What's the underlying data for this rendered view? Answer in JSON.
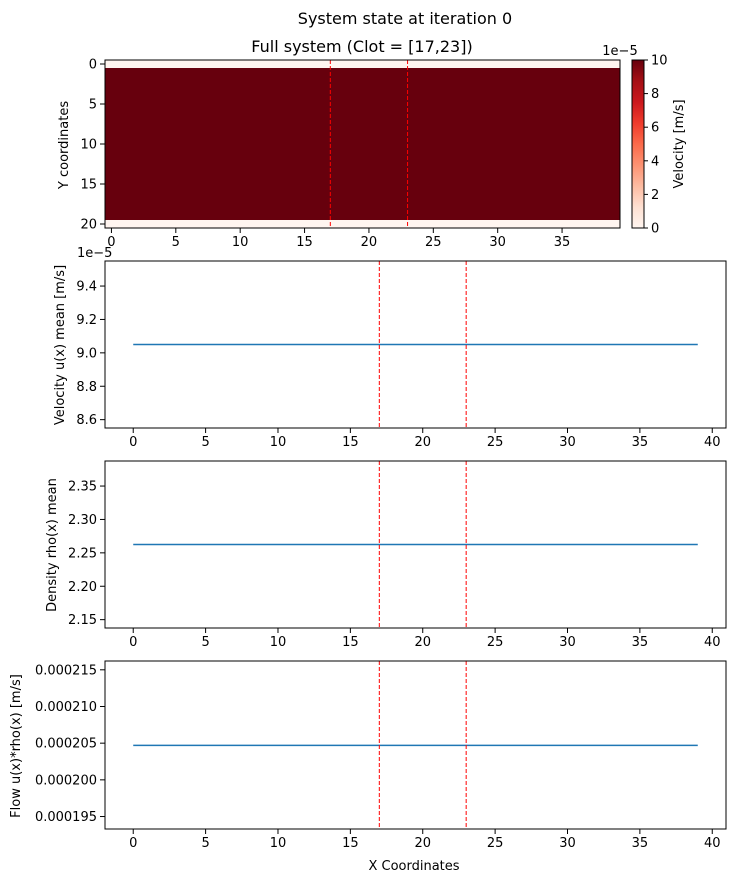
{
  "suptitle": "System state at iteration 0",
  "colors": {
    "heat_fill": "#67000d",
    "heat_background": "#fff5f0",
    "line": "#1f77b4",
    "clot": "#ff0000",
    "axis": "#000000"
  },
  "chart_data": [
    {
      "type": "heatmap",
      "title": "Full system (Clot = [17,23])",
      "xlabel": "",
      "ylabel": "Y coordinates",
      "xlim": [
        -0.5,
        39.5
      ],
      "ylim": [
        20.5,
        -0.5
      ],
      "xticks": [
        0,
        5,
        10,
        15,
        20,
        25,
        30,
        35
      ],
      "xtick_labels": [
        "0",
        "5",
        "10",
        "15",
        "20",
        "25",
        "30",
        "35"
      ],
      "yticks": [
        0,
        5,
        10,
        15,
        20
      ],
      "ytick_labels": [
        "0",
        "5",
        "10",
        "15",
        "20"
      ],
      "grid_shape": [
        21,
        40
      ],
      "fluid_rows": [
        1,
        19
      ],
      "fluid_value": 9.05e-05,
      "wall_value": 0,
      "colorscale": "Reds",
      "clot_lines": [
        17,
        23
      ],
      "colorbar": {
        "label": "Velocity [m/s]",
        "range": [
          0,
          10
        ],
        "multiplier": "1e−5",
        "ticks": [
          0,
          2,
          4,
          6,
          8,
          10
        ],
        "tick_labels": [
          "0",
          "2",
          "4",
          "6",
          "8",
          "10"
        ]
      }
    },
    {
      "type": "line",
      "xlabel": "",
      "ylabel": "Velocity u(x) mean [m/s]",
      "offset_label": "1e−5",
      "xlim": [
        -1.95,
        40.95
      ],
      "ylim": [
        8.55,
        9.55
      ],
      "xticks": [
        0,
        5,
        10,
        15,
        20,
        25,
        30,
        35,
        40
      ],
      "xtick_labels": [
        "0",
        "5",
        "10",
        "15",
        "20",
        "25",
        "30",
        "35",
        "40"
      ],
      "yticks": [
        8.6,
        8.8,
        9.0,
        9.2,
        9.4
      ],
      "ytick_labels": [
        "8.6",
        "8.8",
        "9.0",
        "9.2",
        "9.4"
      ],
      "clot_lines": [
        17,
        23
      ],
      "series": [
        {
          "x": [
            0,
            39
          ],
          "y": [
            9.05,
            9.05
          ]
        }
      ]
    },
    {
      "type": "line",
      "xlabel": "",
      "ylabel": "Density rho(x) mean",
      "xlim": [
        -1.95,
        40.95
      ],
      "ylim": [
        2.1375,
        2.3875
      ],
      "xticks": [
        0,
        5,
        10,
        15,
        20,
        25,
        30,
        35,
        40
      ],
      "xtick_labels": [
        "0",
        "5",
        "10",
        "15",
        "20",
        "25",
        "30",
        "35",
        "40"
      ],
      "yticks": [
        2.15,
        2.2,
        2.25,
        2.3,
        2.35
      ],
      "ytick_labels": [
        "2.15",
        "2.20",
        "2.25",
        "2.30",
        "2.35"
      ],
      "clot_lines": [
        17,
        23
      ],
      "series": [
        {
          "x": [
            0,
            39
          ],
          "y": [
            2.2625,
            2.2625
          ]
        }
      ]
    },
    {
      "type": "line",
      "xlabel": "X Coordinates",
      "ylabel": "Flow u(x)*rho(x) [m/s]",
      "xlim": [
        -1.95,
        40.95
      ],
      "ylim": [
        0.0001933,
        0.0002162
      ],
      "xticks": [
        0,
        5,
        10,
        15,
        20,
        25,
        30,
        35,
        40
      ],
      "xtick_labels": [
        "0",
        "5",
        "10",
        "15",
        "20",
        "25",
        "30",
        "35",
        "40"
      ],
      "yticks": [
        0.000195,
        0.0002,
        0.000205,
        0.00021,
        0.000215
      ],
      "ytick_labels": [
        "0.000195",
        "0.000200",
        "0.000205",
        "0.000210",
        "0.000215"
      ],
      "clot_lines": [
        17,
        23
      ],
      "series": [
        {
          "x": [
            0,
            39
          ],
          "y": [
            0.0002047,
            0.0002047
          ]
        }
      ]
    }
  ]
}
